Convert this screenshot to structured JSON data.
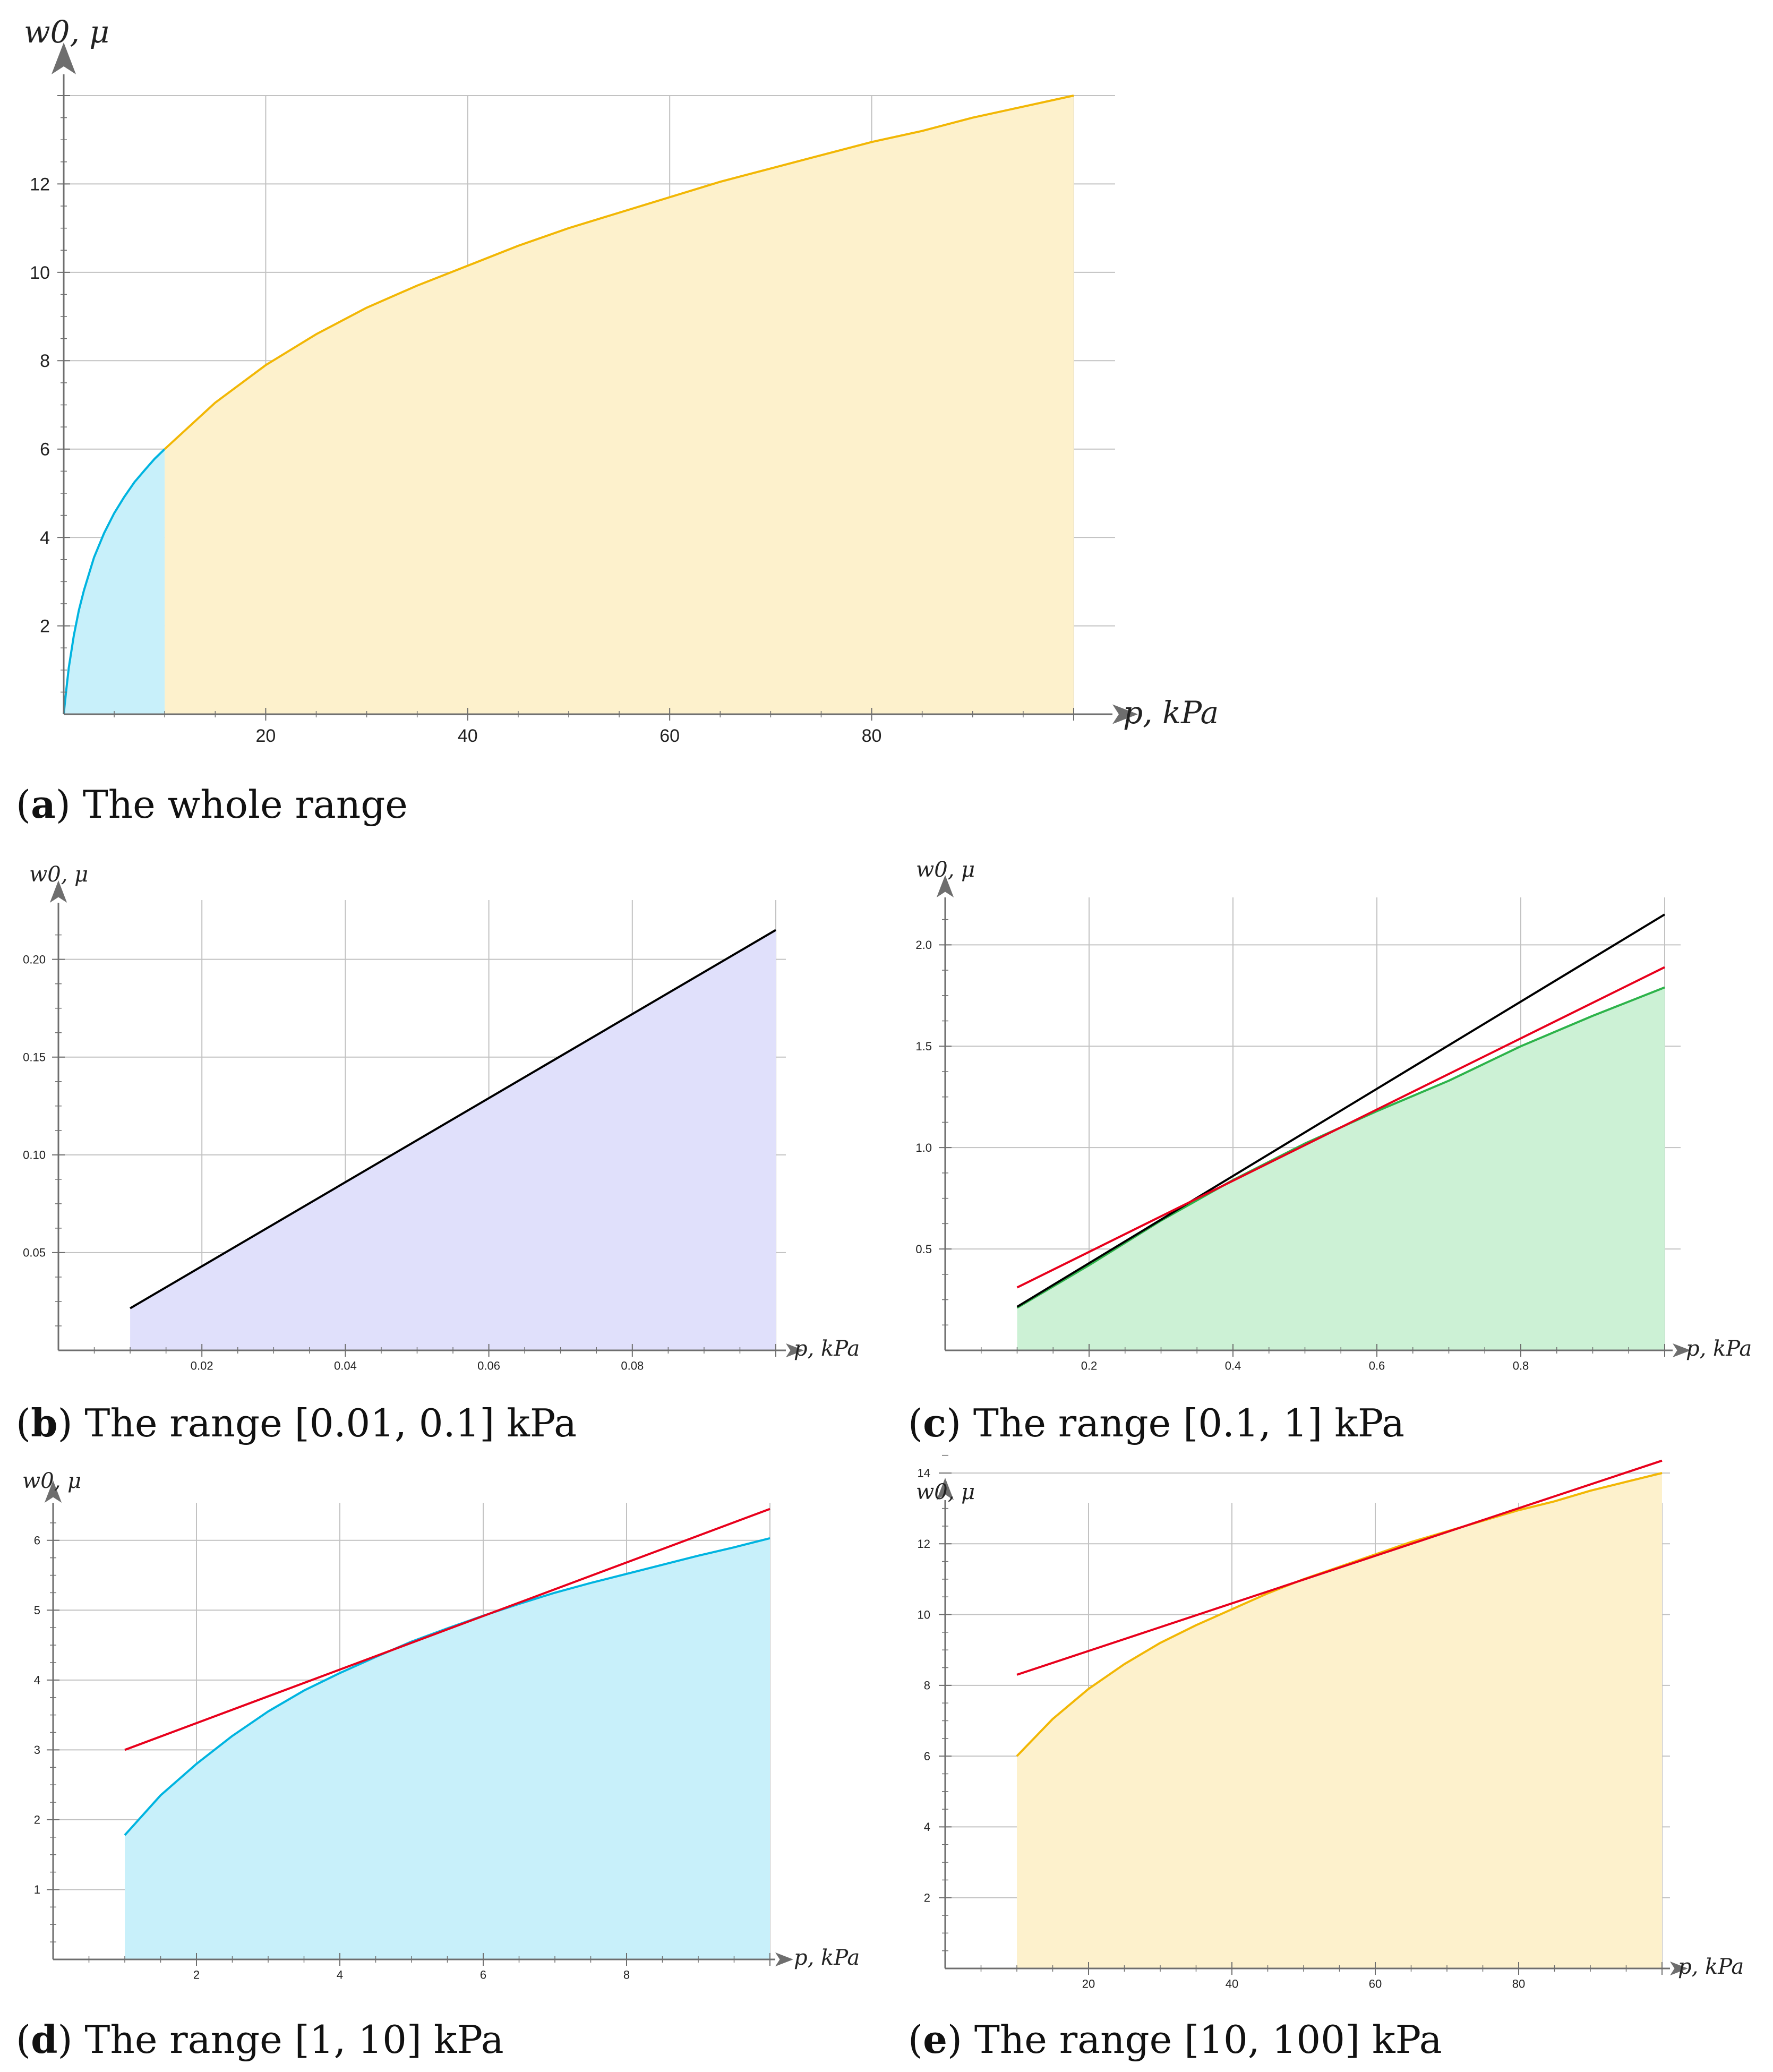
{
  "chart_data": [
    {
      "id": "a",
      "type": "area",
      "caption": {
        "letter": "a",
        "text": " The whole range"
      },
      "xlabel": "p, kPa",
      "ylabel": "w0, μ",
      "xlim": [
        0,
        102
      ],
      "ylim": [
        0,
        14
      ],
      "xticks": [
        20,
        40,
        60,
        80
      ],
      "yticks": [
        2,
        4,
        6,
        8,
        10,
        12
      ],
      "xtick_labels": [
        "20",
        "40",
        "60",
        "80"
      ],
      "ytick_labels": [
        "2",
        "4",
        "6",
        "8",
        "10",
        "12"
      ],
      "xgrid": [
        20,
        40,
        60,
        80,
        100
      ],
      "ygrid": [
        2,
        4,
        6,
        8,
        10,
        12,
        14
      ],
      "grid": true,
      "series": [
        {
          "kind": "area",
          "color": "#00b4e0",
          "fill": "#c8f0fa",
          "x": [
            0,
            0.1,
            0.25,
            0.5,
            1,
            1.5,
            2,
            3,
            4,
            5,
            6,
            7,
            8,
            9,
            10
          ],
          "y": [
            0,
            0.22,
            0.55,
            1.05,
            1.78,
            2.35,
            2.8,
            3.55,
            4.1,
            4.55,
            4.92,
            5.25,
            5.52,
            5.78,
            6.0
          ]
        },
        {
          "kind": "area",
          "color": "#f2b705",
          "fill": "#fdf1cc",
          "x": [
            10,
            15,
            20,
            25,
            30,
            35,
            40,
            45,
            50,
            55,
            60,
            65,
            70,
            75,
            80,
            85,
            90,
            95,
            100
          ],
          "y": [
            6.0,
            7.05,
            7.9,
            8.6,
            9.2,
            9.7,
            10.15,
            10.6,
            11.0,
            11.35,
            11.7,
            12.05,
            12.35,
            12.65,
            12.95,
            13.2,
            13.5,
            13.75,
            14.0
          ]
        }
      ]
    },
    {
      "id": "b",
      "type": "area",
      "caption": {
        "letter": "b",
        "text": " The range [0.01, 0.1] kPa"
      },
      "xlabel": "p, kPa",
      "ylabel": "w0, μ",
      "xlim": [
        0,
        0.1
      ],
      "ylim": [
        0,
        0.22
      ],
      "xticks": [
        0.02,
        0.04,
        0.06,
        0.08
      ],
      "yticks": [
        0.05,
        0.1,
        0.15,
        0.2
      ],
      "xtick_labels": [
        "0.02",
        "0.04",
        "0.06",
        "0.08"
      ],
      "ytick_labels": [
        "0.05",
        "0.10",
        "0.15",
        "0.20"
      ],
      "xgrid": [
        0.02,
        0.04,
        0.06,
        0.08,
        0.1
      ],
      "ygrid": [
        0.05,
        0.1,
        0.15,
        0.2
      ],
      "grid": true,
      "series": [
        {
          "kind": "area",
          "color": "#000000",
          "fill": "#e0e0fb",
          "x": [
            0.01,
            0.1
          ],
          "y": [
            0.0215,
            0.215
          ]
        }
      ]
    },
    {
      "id": "c",
      "type": "area",
      "caption": {
        "letter": "c",
        "text": " The range [0.1, 1] kPa"
      },
      "xlabel": "p, kPa",
      "ylabel": "w0, μ",
      "xlim": [
        0,
        1
      ],
      "ylim": [
        0,
        2.2
      ],
      "xticks": [
        0.2,
        0.4,
        0.6,
        0.8
      ],
      "yticks": [
        0.5,
        1.0,
        1.5,
        2.0
      ],
      "xtick_labels": [
        "0.2",
        "0.4",
        "0.6",
        "0.8"
      ],
      "ytick_labels": [
        "0.5",
        "1.0",
        "1.5",
        "2.0"
      ],
      "xgrid": [
        0.2,
        0.4,
        0.6,
        0.8,
        1.0
      ],
      "ygrid": [
        0.5,
        1.0,
        1.5,
        2.0
      ],
      "grid": true,
      "series": [
        {
          "kind": "area",
          "color": "#2db34a",
          "fill": "#ccf1d5",
          "x": [
            0.1,
            0.2,
            0.3,
            0.4,
            0.5,
            0.6,
            0.7,
            0.8,
            0.9,
            1.0
          ],
          "y": [
            0.21,
            0.42,
            0.64,
            0.84,
            1.02,
            1.18,
            1.33,
            1.5,
            1.65,
            1.79
          ]
        },
        {
          "kind": "line",
          "color": "#000000",
          "x": [
            0.1,
            1.0
          ],
          "y": [
            0.215,
            2.15
          ]
        },
        {
          "kind": "line",
          "color": "#e8001c",
          "x": [
            0.1,
            1.0
          ],
          "y": [
            0.31,
            1.89
          ]
        }
      ]
    },
    {
      "id": "d",
      "type": "area",
      "caption": {
        "letter": "d",
        "text": " The range [1, 10] kPa"
      },
      "xlabel": "p, kPa",
      "ylabel": "w0, μ",
      "xlim": [
        0,
        10
      ],
      "ylim": [
        0,
        6.5
      ],
      "xticks": [
        2,
        4,
        6,
        8
      ],
      "yticks": [
        1,
        2,
        3,
        4,
        5,
        6
      ],
      "xtick_labels": [
        "2",
        "4",
        "6",
        "8"
      ],
      "ytick_labels": [
        "1",
        "2",
        "3",
        "4",
        "5",
        "6"
      ],
      "xgrid": [
        2,
        4,
        6,
        8,
        10
      ],
      "ygrid": [
        1,
        2,
        3,
        4,
        5,
        6
      ],
      "grid": true,
      "series": [
        {
          "kind": "area",
          "color": "#00b4e0",
          "fill": "#c8f0fa",
          "x": [
            1,
            1.5,
            2,
            2.5,
            3,
            3.5,
            4,
            4.5,
            5,
            5.5,
            6,
            6.5,
            7,
            7.5,
            8,
            8.5,
            9,
            9.5,
            10
          ],
          "y": [
            1.78,
            2.35,
            2.8,
            3.2,
            3.55,
            3.85,
            4.1,
            4.33,
            4.55,
            4.74,
            4.92,
            5.09,
            5.25,
            5.39,
            5.52,
            5.65,
            5.78,
            5.9,
            6.03
          ]
        },
        {
          "kind": "line",
          "color": "#e8001c",
          "x": [
            1,
            10
          ],
          "y": [
            3.0,
            6.45
          ]
        }
      ]
    },
    {
      "id": "e",
      "type": "area",
      "caption": {
        "letter": "e",
        "text": " The range [10, 100] kPa"
      },
      "xlabel": "p, kPa",
      "ylabel": "w0, μ",
      "xlim": [
        0,
        100
      ],
      "ylim": [
        0,
        14.6
      ],
      "xticks": [
        20,
        40,
        60,
        80
      ],
      "yticks": [
        2,
        4,
        6,
        8,
        10,
        12,
        14
      ],
      "xtick_labels": [
        "20",
        "40",
        "60",
        "80"
      ],
      "ytick_labels": [
        "2",
        "4",
        "6",
        "8",
        "10",
        "12",
        "14"
      ],
      "xgrid": [
        20,
        40,
        60,
        80,
        100
      ],
      "ygrid": [
        2,
        4,
        6,
        8,
        10,
        12,
        14
      ],
      "grid": true,
      "series": [
        {
          "kind": "area",
          "color": "#f2b705",
          "fill": "#fdf1cc",
          "x": [
            10,
            15,
            20,
            25,
            30,
            35,
            40,
            45,
            50,
            55,
            60,
            65,
            70,
            75,
            80,
            85,
            90,
            95,
            100
          ],
          "y": [
            6.0,
            7.05,
            7.9,
            8.6,
            9.2,
            9.7,
            10.15,
            10.6,
            11.0,
            11.35,
            11.7,
            12.05,
            12.35,
            12.65,
            12.95,
            13.2,
            13.5,
            13.75,
            14.0
          ]
        },
        {
          "kind": "line",
          "color": "#e8001c",
          "x": [
            10,
            100
          ],
          "y": [
            8.3,
            14.35
          ]
        }
      ]
    }
  ]
}
